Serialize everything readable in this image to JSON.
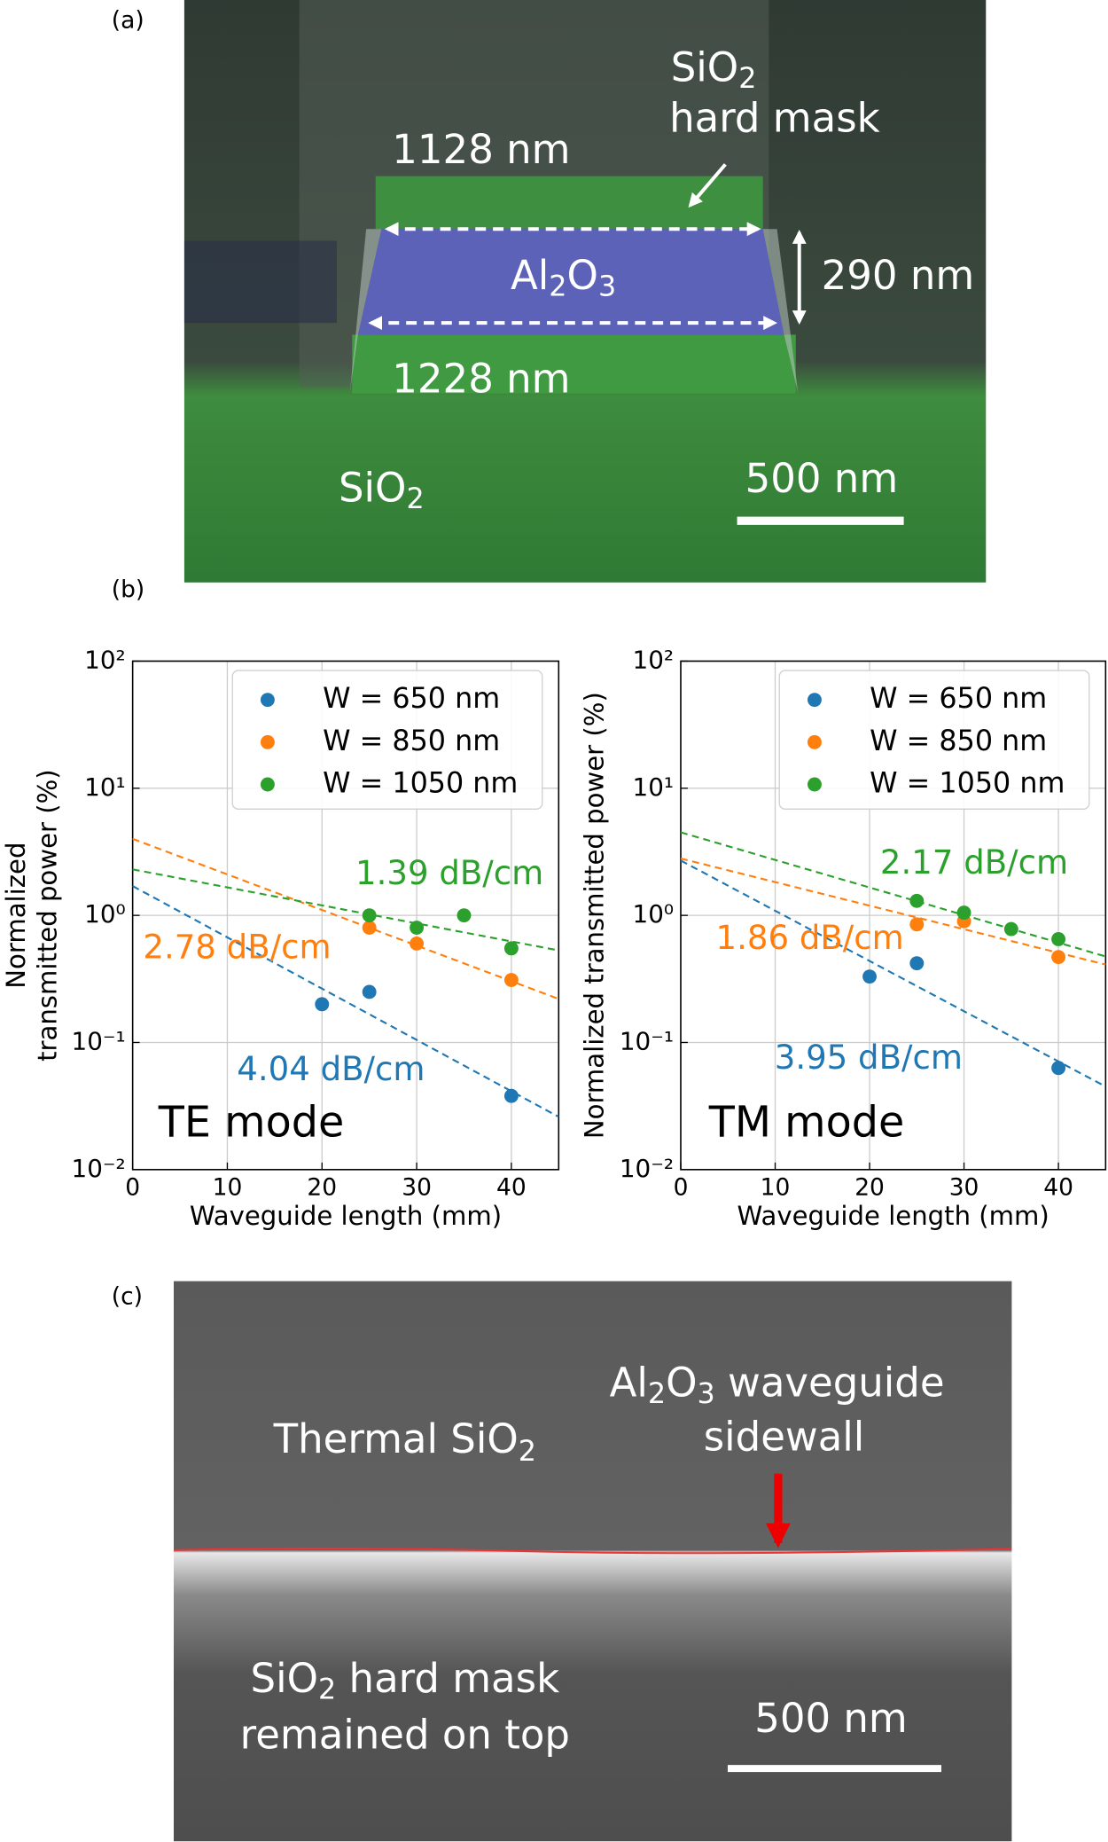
{
  "panel_a": {
    "label": "(a)",
    "width_top": "1128 nm",
    "mask": [
      "SiO",
      "2"
    ],
    "mask_line2": "hard mask",
    "core": [
      "Al",
      "2",
      "O",
      "3"
    ],
    "height": "290 nm",
    "width_bottom": "1228 nm",
    "substrate": [
      "SiO",
      "2"
    ],
    "scale_bar": "500 nm"
  },
  "panel_b_label": "(b)",
  "chart_data": [
    {
      "type": "scatter",
      "mode_label": "TE mode",
      "xlabel": "Waveguide length (mm)",
      "ylabel": [
        "Normalized",
        "transmitted power (%)"
      ],
      "xlim": [
        0,
        45
      ],
      "xticks": [
        0,
        10,
        20,
        30,
        40
      ],
      "ylim": [
        0.01,
        100
      ],
      "log_y": true,
      "grid": true,
      "legend": "upper right",
      "yticks": [
        {
          "value": 0.01,
          "label": "10⁻²"
        },
        {
          "value": 0.1,
          "label": "10⁻¹"
        },
        {
          "value": 1,
          "label": "10⁰"
        },
        {
          "value": 10,
          "label": "10¹"
        },
        {
          "value": 100,
          "label": "10²"
        }
      ],
      "series": [
        {
          "name": "W = 650 nm",
          "color": "#1f77b4",
          "x": [
            20,
            25,
            40
          ],
          "values": [
            0.2,
            0.25,
            0.038
          ],
          "fit": {
            "x": [
              0,
              45
            ],
            "values": [
              1.7,
              0.026
            ]
          },
          "annotation": "4.04 dB/cm"
        },
        {
          "name": "W = 850 nm",
          "color": "#ff7f0e",
          "x": [
            25,
            30,
            40
          ],
          "values": [
            0.8,
            0.6,
            0.31
          ],
          "fit": {
            "x": [
              0,
              45
            ],
            "values": [
              4.0,
              0.22
            ]
          },
          "annotation": "2.78 dB/cm"
        },
        {
          "name": "W = 1050 nm",
          "color": "#2ca02c",
          "x": [
            25,
            30,
            35,
            40
          ],
          "values": [
            1.0,
            0.8,
            1.0,
            0.55
          ],
          "fit": {
            "x": [
              0,
              45
            ],
            "values": [
              2.3,
              0.53
            ]
          },
          "annotation": "1.39 dB/cm"
        }
      ]
    },
    {
      "type": "scatter",
      "mode_label": "TM mode",
      "xlabel": "Waveguide length (mm)",
      "ylabel": [
        "Normalized transmitted power (%)"
      ],
      "xlim": [
        0,
        45
      ],
      "xticks": [
        0,
        10,
        20,
        30,
        40
      ],
      "ylim": [
        0.01,
        100
      ],
      "log_y": true,
      "grid": true,
      "legend": "upper right",
      "yticks": [
        {
          "value": 0.01,
          "label": "10⁻²"
        },
        {
          "value": 0.1,
          "label": "10⁻¹"
        },
        {
          "value": 1,
          "label": "10⁰"
        },
        {
          "value": 10,
          "label": "10¹"
        },
        {
          "value": 100,
          "label": "10²"
        }
      ],
      "series": [
        {
          "name": "W = 650 nm",
          "color": "#1f77b4",
          "x": [
            20,
            25,
            40
          ],
          "values": [
            0.33,
            0.42,
            0.063
          ],
          "fit": {
            "x": [
              0,
              45
            ],
            "values": [
              2.7,
              0.045
            ]
          },
          "annotation": "3.95 dB/cm"
        },
        {
          "name": "W = 850 nm",
          "color": "#ff7f0e",
          "x": [
            25,
            30,
            40
          ],
          "values": [
            0.85,
            0.9,
            0.47
          ],
          "fit": {
            "x": [
              0,
              45
            ],
            "values": [
              2.8,
              0.41
            ]
          },
          "annotation": "1.86 dB/cm"
        },
        {
          "name": "W = 1050 nm",
          "color": "#2ca02c",
          "x": [
            25,
            30,
            35,
            40
          ],
          "values": [
            1.3,
            1.05,
            0.78,
            0.65
          ],
          "fit": {
            "x": [
              0,
              45
            ],
            "values": [
              4.5,
              0.475
            ]
          },
          "annotation": "2.17 dB/cm"
        }
      ]
    }
  ],
  "panel_c": {
    "label": "(c)",
    "top_region": [
      "Thermal SiO",
      "2"
    ],
    "sidewall": [
      "Al",
      "2",
      "O",
      "3",
      " waveguide"
    ],
    "sidewall_line2": "sidewall",
    "bottom_region": [
      "SiO",
      "2",
      " hard mask"
    ],
    "bottom_line2": "remained on top",
    "scale_bar": "500 nm"
  }
}
